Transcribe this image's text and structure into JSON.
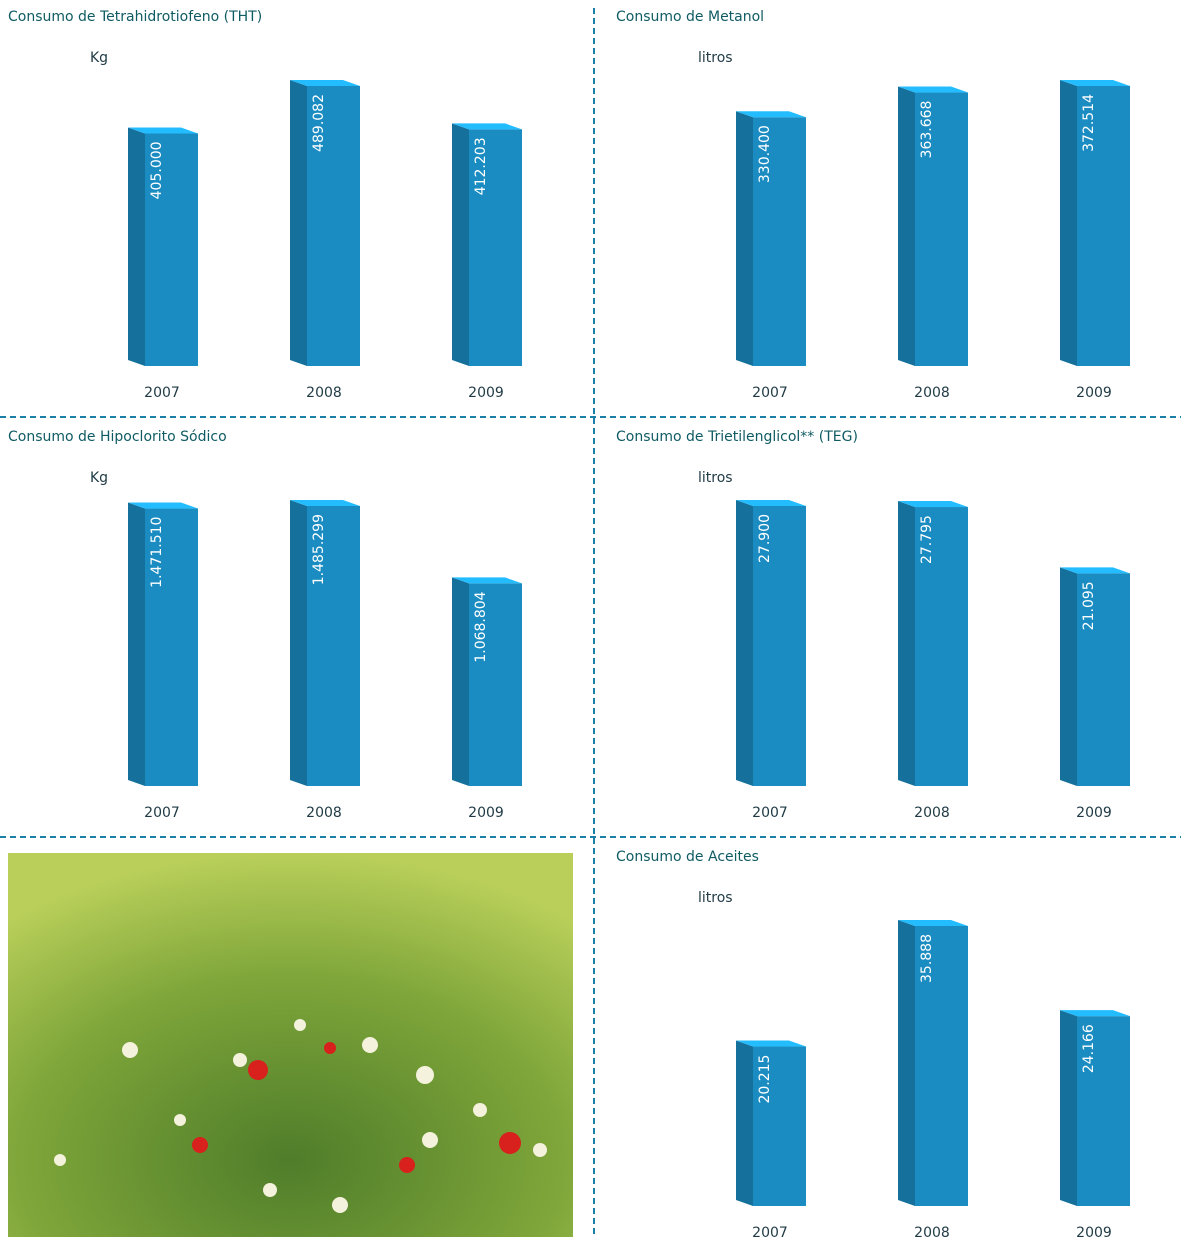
{
  "chart_data": [
    {
      "type": "bar",
      "title": "Consumo de Tetrahidrotiofeno (THT)",
      "y_label": "Kg",
      "categories": [
        "2007",
        "2008",
        "2009"
      ],
      "values": [
        405000,
        489082,
        412203
      ],
      "value_labels": [
        "405.000",
        "489.082",
        "412.203"
      ],
      "color": "#1a8cc2"
    },
    {
      "type": "bar",
      "title": "Consumo de Metanol",
      "y_label": "litros",
      "categories": [
        "2007",
        "2008",
        "2009"
      ],
      "values": [
        330400,
        363668,
        372514
      ],
      "value_labels": [
        "330.400",
        "363.668",
        "372.514"
      ],
      "color": "#1a8cc2"
    },
    {
      "type": "bar",
      "title": "Consumo de Hipoclorito Sódico",
      "y_label": "Kg",
      "categories": [
        "2007",
        "2008",
        "2009"
      ],
      "values": [
        1471510,
        1485299,
        1068804
      ],
      "value_labels": [
        "1.471.510",
        "1.485.299",
        "1.068.804"
      ],
      "color": "#1a8cc2"
    },
    {
      "type": "bar",
      "title": "Consumo de Trietilenglicol** (TEG)",
      "y_label": "litros",
      "categories": [
        "2007",
        "2008",
        "2009"
      ],
      "values": [
        27900,
        27795,
        21095
      ],
      "value_labels": [
        "27.900",
        "27.795",
        "21.095"
      ],
      "color": "#1a8cc2"
    },
    {
      "type": "bar",
      "title": "Consumo de Aceites",
      "y_label": "litros",
      "categories": [
        "2007",
        "2008",
        "2009"
      ],
      "values": [
        20215,
        35888,
        24166
      ],
      "value_labels": [
        "20.215",
        "35.888",
        "24.166"
      ],
      "color": "#1a8cc2"
    }
  ]
}
